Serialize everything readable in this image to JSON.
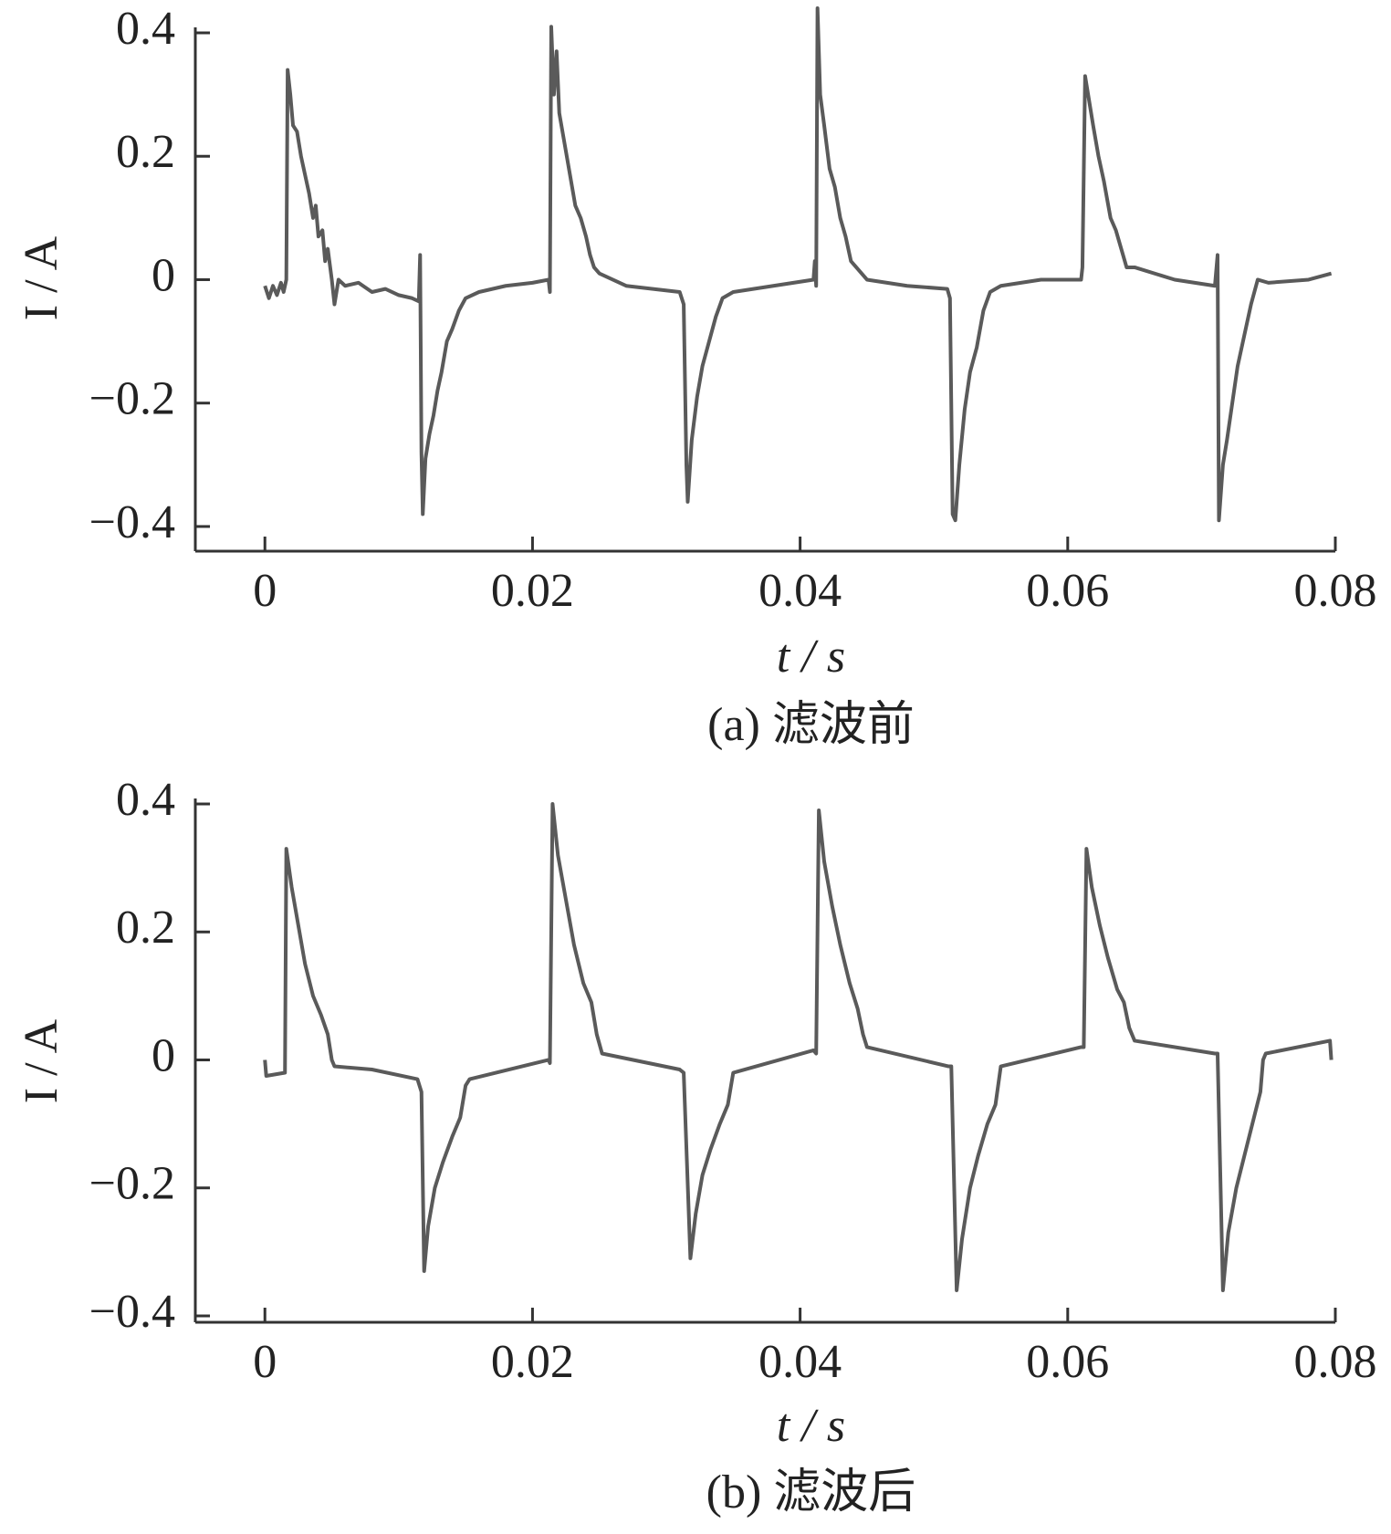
{
  "chart_data": [
    {
      "type": "line",
      "title": "(a)  滤波前",
      "xlabel": "t / s",
      "ylabel": "I / A",
      "xlim": [
        -0.0052,
        0.08
      ],
      "ylim": [
        -0.44,
        0.4
      ],
      "xticks": [
        0,
        0.02,
        0.04,
        0.06,
        0.08
      ],
      "yticks": [
        {
          "value": -0.4,
          "label": "−0.4"
        },
        {
          "value": -0.2,
          "label": "−0.2"
        },
        0,
        0.2,
        0.4
      ],
      "x": [
        0,
        0.0003,
        0.0006,
        0.0009,
        0.0012,
        0.0014,
        0.0016,
        0.0017,
        0.0019,
        0.0021,
        0.0024,
        0.0027,
        0.003,
        0.0033,
        0.0036,
        0.0038,
        0.004,
        0.0043,
        0.0045,
        0.0047,
        0.005,
        0.0052,
        0.0055,
        0.006,
        0.007,
        0.008,
        0.009,
        0.01,
        0.011,
        0.0115,
        0.0116,
        0.0117,
        0.0118,
        0.012,
        0.0123,
        0.0126,
        0.0129,
        0.0132,
        0.0136,
        0.014,
        0.0145,
        0.015,
        0.016,
        0.018,
        0.02,
        0.0212,
        0.0213,
        0.0214,
        0.0216,
        0.0218,
        0.022,
        0.0224,
        0.0228,
        0.0232,
        0.0236,
        0.024,
        0.0243,
        0.0246,
        0.025,
        0.027,
        0.029,
        0.031,
        0.0313,
        0.0315,
        0.0316,
        0.0319,
        0.0323,
        0.0327,
        0.0332,
        0.0337,
        0.0342,
        0.035,
        0.038,
        0.041,
        0.0411,
        0.0412,
        0.0413,
        0.0415,
        0.0418,
        0.0422,
        0.0426,
        0.043,
        0.0434,
        0.0438,
        0.0442,
        0.045,
        0.048,
        0.051,
        0.0512,
        0.0514,
        0.0516,
        0.0519,
        0.0523,
        0.0527,
        0.0532,
        0.0537,
        0.0542,
        0.055,
        0.058,
        0.061,
        0.0611,
        0.0613,
        0.0616,
        0.0619,
        0.0623,
        0.0627,
        0.0632,
        0.0636,
        0.064,
        0.0644,
        0.065,
        0.068,
        0.071,
        0.0712,
        0.0713,
        0.0716,
        0.0719,
        0.0723,
        0.0727,
        0.0732,
        0.0737,
        0.0742,
        0.075,
        0.078,
        0.0797
      ],
      "series": [
        {
          "color": "#5a5a5a",
          "values": [
            -0.01,
            -0.03,
            -0.01,
            -0.025,
            -0.005,
            -0.02,
            0.0,
            0.34,
            0.3,
            0.25,
            0.24,
            0.2,
            0.17,
            0.14,
            0.1,
            0.12,
            0.07,
            0.08,
            0.03,
            0.05,
            0.0,
            -0.04,
            0.0,
            -0.01,
            -0.005,
            -0.02,
            -0.015,
            -0.025,
            -0.03,
            -0.035,
            0.04,
            -0.28,
            -0.38,
            -0.29,
            -0.25,
            -0.22,
            -0.18,
            -0.15,
            -0.1,
            -0.08,
            -0.05,
            -0.03,
            -0.02,
            -0.01,
            -0.005,
            0.0,
            -0.02,
            0.41,
            0.3,
            0.37,
            0.27,
            0.22,
            0.17,
            0.12,
            0.1,
            0.07,
            0.04,
            0.02,
            0.01,
            -0.01,
            -0.015,
            -0.02,
            -0.04,
            -0.3,
            -0.36,
            -0.26,
            -0.19,
            -0.14,
            -0.1,
            -0.06,
            -0.03,
            -0.02,
            -0.01,
            0.0,
            0.03,
            -0.01,
            0.44,
            0.3,
            0.25,
            0.18,
            0.15,
            0.1,
            0.07,
            0.03,
            0.02,
            0.0,
            -0.01,
            -0.015,
            -0.03,
            -0.38,
            -0.39,
            -0.3,
            -0.21,
            -0.15,
            -0.11,
            -0.05,
            -0.02,
            -0.01,
            0.0,
            0.0,
            0.02,
            0.33,
            0.29,
            0.25,
            0.2,
            0.16,
            0.1,
            0.08,
            0.05,
            0.02,
            0.02,
            0.0,
            -0.01,
            0.04,
            -0.39,
            -0.3,
            -0.26,
            -0.2,
            -0.14,
            -0.09,
            -0.04,
            0.0,
            -0.005,
            0.0,
            0.01
          ]
        }
      ]
    },
    {
      "type": "line",
      "title": "(b)  滤波后",
      "xlabel": "t / s",
      "ylabel": "I / A",
      "xlim": [
        -0.0052,
        0.08
      ],
      "ylim": [
        -0.41,
        0.4
      ],
      "xticks": [
        0,
        0.02,
        0.04,
        0.06,
        0.08
      ],
      "yticks": [
        {
          "value": -0.4,
          "label": "−0.4"
        },
        {
          "value": -0.2,
          "label": "−0.2"
        },
        0,
        0.2,
        0.4
      ],
      "x": [
        0,
        0.0001,
        0.0015,
        0.0016,
        0.002,
        0.0025,
        0.003,
        0.0036,
        0.0042,
        0.0047,
        0.005,
        0.0052,
        0.008,
        0.0114,
        0.0117,
        0.0119,
        0.0122,
        0.0127,
        0.0133,
        0.014,
        0.0146,
        0.015,
        0.0153,
        0.0212,
        0.0213,
        0.0215,
        0.0219,
        0.0225,
        0.0231,
        0.0238,
        0.0244,
        0.0248,
        0.0252,
        0.031,
        0.0313,
        0.0318,
        0.0322,
        0.0327,
        0.0333,
        0.034,
        0.0346,
        0.035,
        0.041,
        0.0412,
        0.0414,
        0.0418,
        0.0424,
        0.043,
        0.0437,
        0.0443,
        0.0447,
        0.045,
        0.0511,
        0.0513,
        0.0517,
        0.0521,
        0.0527,
        0.0533,
        0.054,
        0.0546,
        0.055,
        0.061,
        0.0612,
        0.0614,
        0.0618,
        0.0624,
        0.063,
        0.0637,
        0.0642,
        0.0646,
        0.065,
        0.071,
        0.0712,
        0.0716,
        0.072,
        0.0726,
        0.0732,
        0.0738,
        0.0744,
        0.0746,
        0.0748,
        0.0796,
        0.0797
      ],
      "series": [
        {
          "color": "#5a5a5a",
          "values": [
            0.0,
            -0.025,
            -0.02,
            0.33,
            0.27,
            0.21,
            0.15,
            0.1,
            0.07,
            0.04,
            0.0,
            -0.01,
            -0.015,
            -0.03,
            -0.05,
            -0.33,
            -0.26,
            -0.2,
            -0.16,
            -0.12,
            -0.09,
            -0.04,
            -0.03,
            0.0,
            -0.005,
            0.4,
            0.32,
            0.25,
            0.18,
            0.12,
            0.09,
            0.04,
            0.01,
            -0.015,
            -0.02,
            -0.31,
            -0.24,
            -0.18,
            -0.14,
            -0.1,
            -0.07,
            -0.02,
            0.015,
            0.01,
            0.39,
            0.31,
            0.24,
            0.18,
            0.12,
            0.08,
            0.04,
            0.02,
            -0.01,
            -0.01,
            -0.36,
            -0.28,
            -0.2,
            -0.15,
            -0.1,
            -0.07,
            -0.01,
            0.02,
            0.02,
            0.33,
            0.27,
            0.21,
            0.16,
            0.11,
            0.09,
            0.05,
            0.03,
            0.01,
            0.01,
            -0.36,
            -0.27,
            -0.2,
            -0.15,
            -0.1,
            -0.05,
            0.0,
            0.01,
            0.03,
            0.0
          ]
        }
      ]
    }
  ]
}
